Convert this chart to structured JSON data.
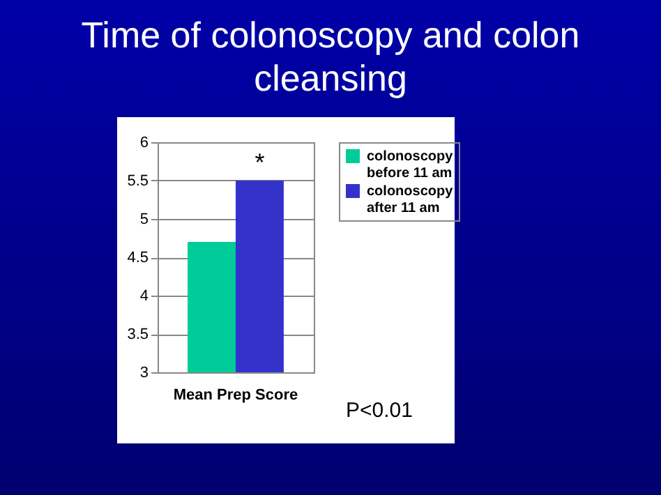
{
  "chart_data": {
    "type": "bar",
    "title": "Time of colonoscopy and colon cleansing",
    "categories": [
      "Mean Prep Score"
    ],
    "series": [
      {
        "name": "colonoscopy before 11 am",
        "color": "#00cc99",
        "values": [
          4.7
        ]
      },
      {
        "name": "colonoscopy after 11 am",
        "color": "#3333cc",
        "values": [
          5.5
        ]
      }
    ],
    "ylim": [
      3,
      6
    ],
    "yticks": [
      3,
      3.5,
      4,
      4.5,
      5,
      5.5,
      6
    ],
    "grid": "y",
    "legend": "right",
    "annotations": [
      "*",
      "P<0.01"
    ]
  }
}
